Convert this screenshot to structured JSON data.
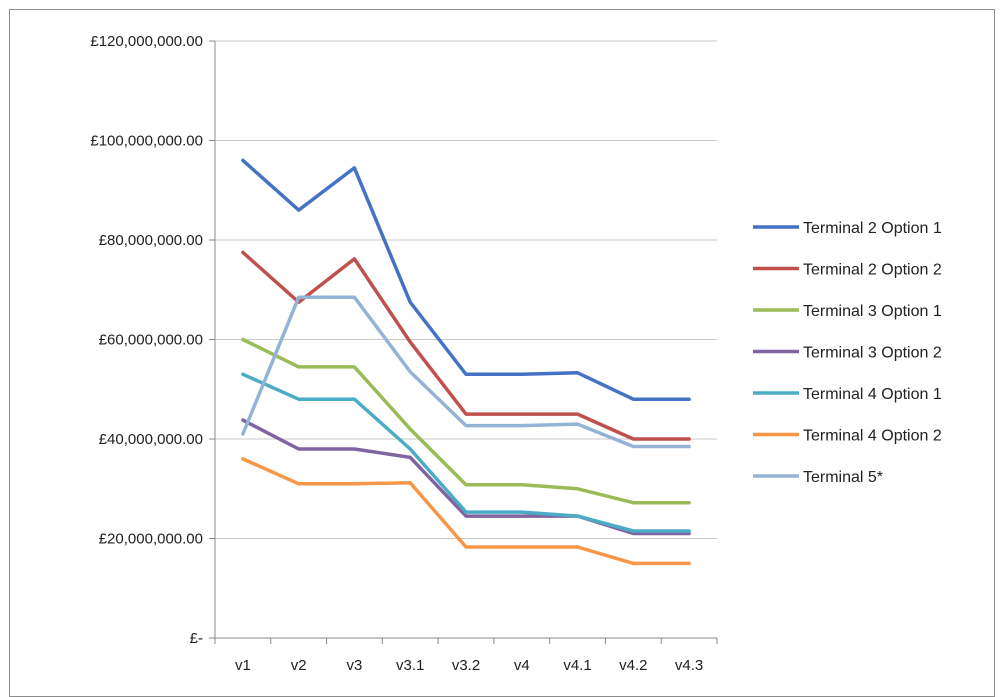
{
  "chart_data": {
    "type": "line",
    "categories": [
      "v1",
      "v2",
      "v3",
      "v3.1",
      "v3.2",
      "v4",
      "v4.1",
      "v4.2",
      "v4.3"
    ],
    "ylim": [
      0,
      120000000
    ],
    "ytick_values": [
      0,
      20000000,
      40000000,
      60000000,
      80000000,
      100000000,
      120000000
    ],
    "ytick_labels": [
      "£-",
      "£20,000,000.00",
      "£40,000,000.00",
      "£60,000,000.00",
      "£80,000,000.00",
      "£100,000,000.00",
      "£120,000,000.00"
    ],
    "grid": true,
    "legend_position": "right",
    "series": [
      {
        "name": "Terminal 2 Option 1",
        "color": "#4472c4",
        "values": [
          96000000,
          86000000,
          94500000,
          67500000,
          53000000,
          53000000,
          53300000,
          48000000,
          48000000
        ]
      },
      {
        "name": "Terminal 2 Option 2",
        "color": "#c0504d",
        "values": [
          77500000,
          67500000,
          76200000,
          59500000,
          45000000,
          45000000,
          45000000,
          40000000,
          40000000
        ]
      },
      {
        "name": "Terminal 3 Option 1",
        "color": "#9bbb59",
        "values": [
          60000000,
          54500000,
          54500000,
          42000000,
          30800000,
          30800000,
          30000000,
          27200000,
          27200000
        ]
      },
      {
        "name": "Terminal 3 Option 2",
        "color": "#8064a2",
        "values": [
          43800000,
          38000000,
          38000000,
          36300000,
          24500000,
          24500000,
          24500000,
          21000000,
          21000000
        ]
      },
      {
        "name": "Terminal 4 Option 1",
        "color": "#4bacc6",
        "values": [
          53000000,
          48000000,
          48000000,
          38000000,
          25300000,
          25300000,
          24500000,
          21500000,
          21500000
        ]
      },
      {
        "name": "Terminal 4 Option 2",
        "color": "#f79646",
        "values": [
          36000000,
          31000000,
          31000000,
          31200000,
          18300000,
          18300000,
          18300000,
          15000000,
          15000000
        ]
      },
      {
        "name": "Terminal 5*",
        "color": "#95b3d7",
        "values": [
          41000000,
          68500000,
          68500000,
          53500000,
          42700000,
          42700000,
          43000000,
          38500000,
          38500000
        ]
      }
    ]
  }
}
